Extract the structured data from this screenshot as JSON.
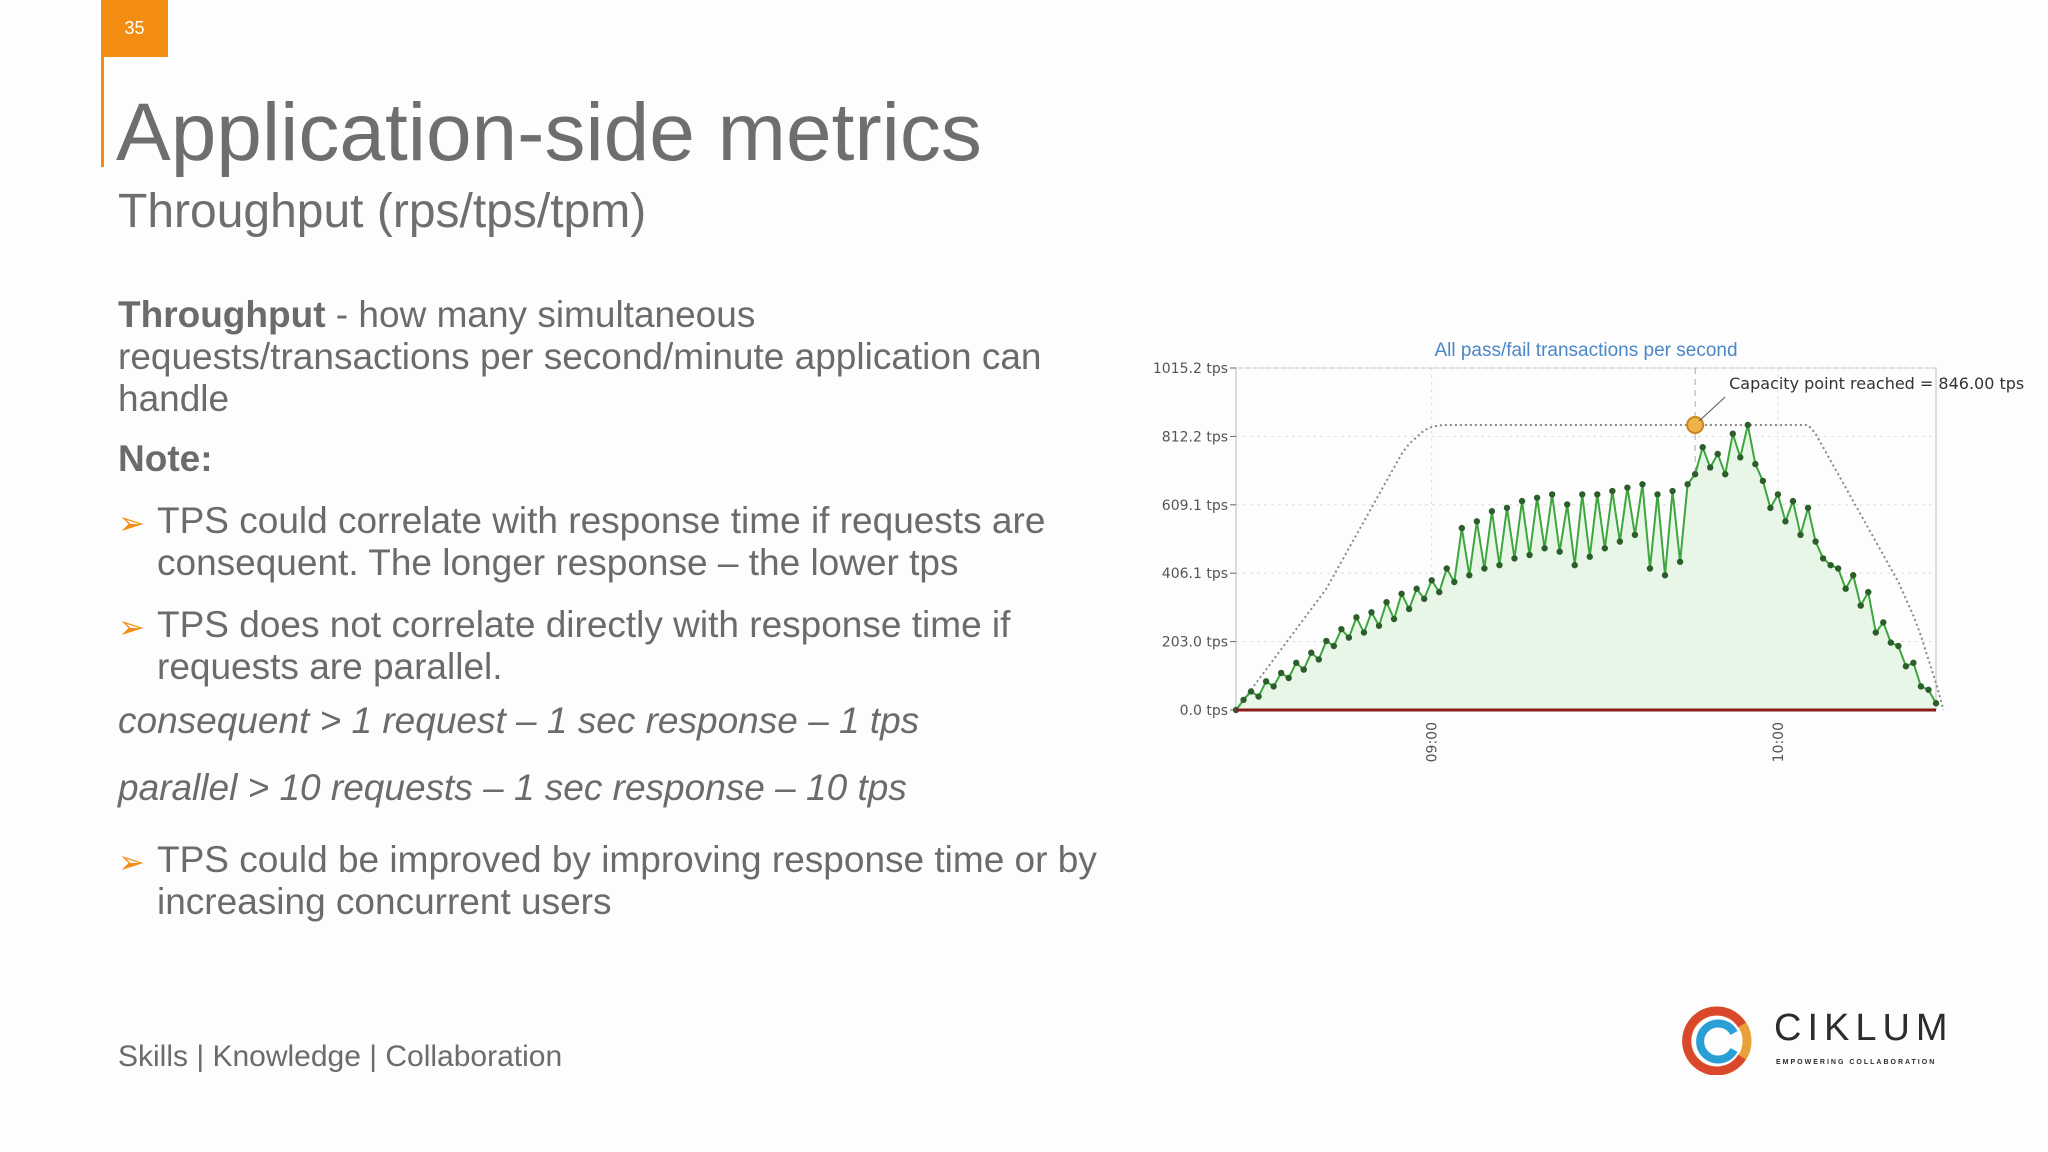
{
  "slide": {
    "number": "35"
  },
  "header": {
    "title": "Application-side metrics",
    "subtitle": "Throughput (rps/tps/tpm)"
  },
  "body": {
    "definition_term": "Throughput",
    "definition_rest": " - how many simultaneous requests/transactions per second/minute application can handle",
    "note_label": "Note:",
    "bullets": [
      "TPS could correlate with response time if requests are consequent. The longer response – the lower tps",
      "TPS does not correlate directly with response time if requests are parallel.",
      "TPS could be improved by improving response time or by increasing concurrent users"
    ],
    "examples": [
      "consequent > 1 request – 1 sec response – 1 tps",
      "parallel > 10 requests – 1 sec response – 10 tps"
    ]
  },
  "footer": {
    "text": "Skills | Knowledge | Collaboration"
  },
  "logo": {
    "name": "CIKLUM",
    "tagline": "EMPOWERING COLLABORATION"
  },
  "colors": {
    "accent": "#f28c13",
    "series_line": "#3da63d",
    "series_fill": "#e8f6e8",
    "max_line": "#888888",
    "title_blue": "#4a86c8"
  },
  "chart_data": {
    "type": "area",
    "title": "All pass/fail transactions per second",
    "ylabel": "",
    "xlabel": "",
    "ylim": [
      0,
      1015.2
    ],
    "yticks": [
      "1015.2 tps",
      "812.2 tps",
      "609.1 tps",
      "406.1 tps",
      "203.0 tps",
      "0.0 tps"
    ],
    "ytick_values": [
      1015.2,
      812.2,
      609.1,
      406.1,
      203.0,
      0.0
    ],
    "xticks": [
      "09:00",
      "10:00"
    ],
    "xtick_positions": [
      26,
      72
    ],
    "xlim": [
      0,
      93
    ],
    "annotation": {
      "text": "Capacity point reached = 846.00 tps",
      "x": 61,
      "y": 846
    },
    "series": [
      {
        "values": [
          0,
          30,
          55,
          40,
          85,
          70,
          110,
          95,
          140,
          120,
          170,
          150,
          205,
          190,
          240,
          215,
          275,
          230,
          290,
          250,
          320,
          270,
          345,
          300,
          360,
          330,
          385,
          350,
          420,
          380,
          540,
          400,
          560,
          420,
          590,
          430,
          600,
          450,
          620,
          460,
          630,
          480,
          640,
          470,
          610,
          430,
          640,
          455,
          640,
          480,
          650,
          500,
          660,
          520,
          670,
          420,
          640,
          400,
          650,
          440,
          670,
          700,
          780,
          720,
          760,
          700,
          820,
          750,
          846,
          730,
          680,
          600,
          640,
          560,
          620,
          520,
          600,
          500,
          450,
          430,
          420,
          360,
          400,
          310,
          350,
          230,
          260,
          200,
          190,
          130,
          140,
          70,
          60,
          20
        ]
      },
      {
        "values": [
          0,
          30,
          60,
          90,
          120,
          150,
          180,
          210,
          240,
          270,
          300,
          330,
          360,
          400,
          440,
          480,
          520,
          560,
          600,
          640,
          680,
          720,
          760,
          790,
          810,
          830,
          840,
          845,
          846,
          846,
          846,
          846,
          846,
          846,
          846,
          846,
          846,
          846,
          846,
          846,
          846,
          846,
          846,
          846,
          846,
          846,
          846,
          846,
          846,
          846,
          846,
          846,
          846,
          846,
          846,
          846,
          846,
          846,
          846,
          846,
          846,
          846,
          846,
          846,
          846,
          846,
          846,
          846,
          846,
          846,
          846,
          846,
          846,
          846,
          846,
          846,
          846,
          820,
          780,
          740,
          700,
          660,
          620,
          580,
          540,
          500,
          460,
          420,
          380,
          330,
          280,
          220,
          150,
          80,
          0
        ]
      }
    ],
    "grid": true
  }
}
